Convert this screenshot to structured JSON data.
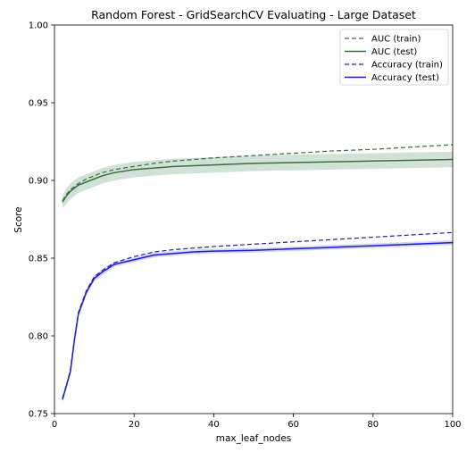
{
  "chart_data": {
    "type": "line",
    "title": "Random Forest - GridSearchCV Evaluating - Large Dataset",
    "xlabel": "max_leaf_nodes",
    "ylabel": "Score",
    "xlim": [
      0,
      100
    ],
    "ylim": [
      0.75,
      1.0
    ],
    "xticks": [
      "0",
      "20",
      "40",
      "60",
      "80",
      "100"
    ],
    "yticks": [
      "0.75",
      "0.80",
      "0.85",
      "0.90",
      "0.95",
      "1.00"
    ],
    "grid": false,
    "legend_position": "top-right",
    "colors": {
      "auc": "#3a6e3a",
      "accuracy": "#1f1fbf",
      "auc_band": "#a9cbb4",
      "accuracy_band": "#b3b3e6"
    },
    "x": [
      2,
      3,
      4,
      5,
      6,
      8,
      10,
      12,
      15,
      20,
      25,
      30,
      35,
      40,
      50,
      60,
      70,
      80,
      90,
      100
    ],
    "series": [
      {
        "name": "AUC (train)",
        "style": "dashed",
        "color": "#3a6e3a",
        "values": [
          0.887,
          0.891,
          0.894,
          0.896,
          0.898,
          0.901,
          0.903,
          0.905,
          0.907,
          0.909,
          0.911,
          0.9125,
          0.9135,
          0.9145,
          0.916,
          0.9175,
          0.919,
          0.92,
          0.9215,
          0.923
        ]
      },
      {
        "name": "AUC (test)",
        "style": "solid",
        "color": "#3a6e3a",
        "values": [
          0.886,
          0.89,
          0.893,
          0.895,
          0.897,
          0.899,
          0.901,
          0.903,
          0.905,
          0.907,
          0.908,
          0.909,
          0.9095,
          0.91,
          0.911,
          0.9115,
          0.912,
          0.9125,
          0.913,
          0.9135
        ],
        "band": [
          0.004,
          0.005,
          0.005,
          0.005,
          0.005,
          0.005,
          0.005,
          0.005,
          0.005,
          0.005,
          0.005,
          0.005,
          0.005,
          0.005,
          0.005,
          0.005,
          0.005,
          0.005,
          0.005,
          0.005
        ]
      },
      {
        "name": "Accuracy (train)",
        "style": "dashed",
        "color": "#1f1fbf",
        "values": [
          0.76,
          0.768,
          0.778,
          0.798,
          0.815,
          0.829,
          0.838,
          0.842,
          0.847,
          0.851,
          0.854,
          0.8555,
          0.8565,
          0.8575,
          0.859,
          0.8605,
          0.862,
          0.8635,
          0.865,
          0.8665
        ]
      },
      {
        "name": "Accuracy (test)",
        "style": "solid",
        "color": "#1f1fbf",
        "values": [
          0.759,
          0.768,
          0.777,
          0.797,
          0.814,
          0.828,
          0.837,
          0.841,
          0.846,
          0.849,
          0.852,
          0.853,
          0.854,
          0.8545,
          0.855,
          0.856,
          0.857,
          0.858,
          0.859,
          0.86
        ],
        "band": [
          0.002,
          0.002,
          0.002,
          0.002,
          0.002,
          0.002,
          0.002,
          0.002,
          0.0015,
          0.0015,
          0.0015,
          0.0015,
          0.0015,
          0.0015,
          0.0015,
          0.0015,
          0.0015,
          0.0015,
          0.0015,
          0.0015
        ]
      }
    ]
  }
}
